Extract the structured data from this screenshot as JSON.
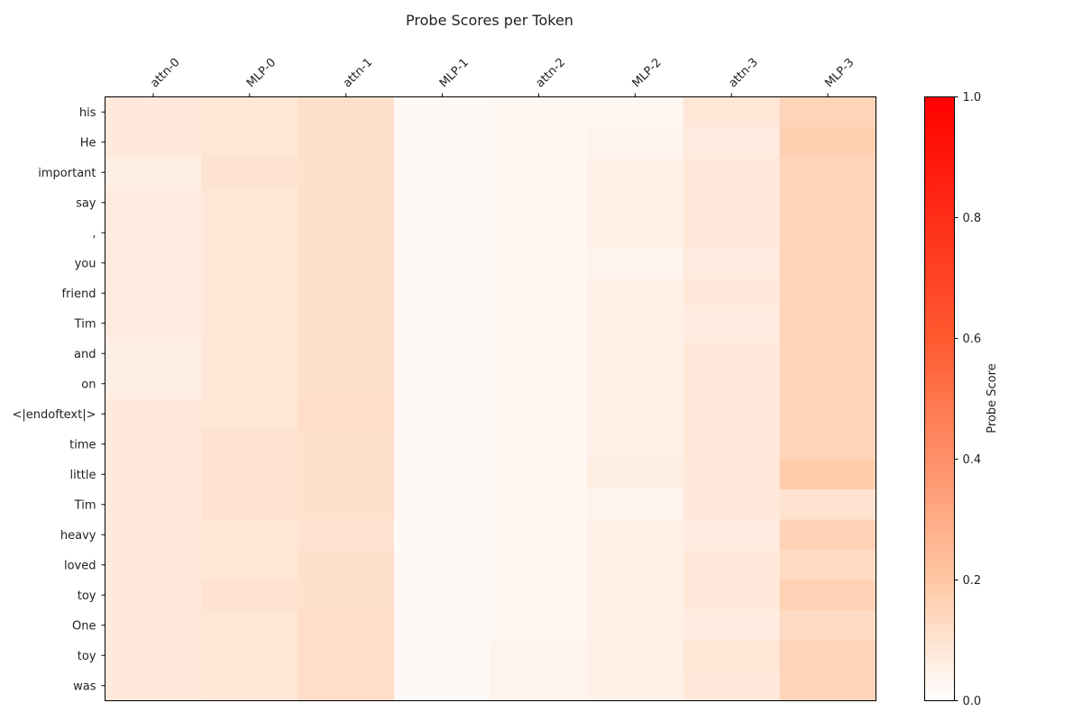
{
  "chart_data": {
    "type": "heatmap",
    "title": "Probe Scores per Token",
    "colorbar": {
      "label": "Probe Score",
      "range": [
        0.0,
        1.0
      ],
      "ticks": [
        "0.0",
        "0.2",
        "0.4",
        "0.6",
        "0.8",
        "1.0"
      ],
      "colors": [
        "#ffffff",
        "#ffc7a3",
        "#ff5a30",
        "#ff0000"
      ]
    },
    "highlight_color": "#d62728",
    "highlighted_row": 5,
    "columns": [
      "attn-0",
      "MLP-0",
      "attn-1",
      "MLP-1",
      "attn-2",
      "MLP-2",
      "attn-3",
      "MLP-3"
    ],
    "rows": [
      "his",
      "He",
      "important",
      "say",
      ",",
      "you",
      "friend",
      "Tim",
      "and",
      "on",
      "<|endoftext|>",
      "time",
      "little",
      "Tim",
      "heavy",
      "loved",
      "toy",
      "One",
      "toy",
      "was"
    ],
    "values": [
      [
        0.08,
        0.09,
        0.11,
        0.02,
        0.03,
        0.03,
        0.09,
        0.15
      ],
      [
        0.08,
        0.09,
        0.11,
        0.02,
        0.03,
        0.04,
        0.07,
        0.17
      ],
      [
        0.06,
        0.1,
        0.11,
        0.02,
        0.03,
        0.05,
        0.08,
        0.15
      ],
      [
        0.07,
        0.09,
        0.11,
        0.02,
        0.03,
        0.05,
        0.08,
        0.15
      ],
      [
        0.07,
        0.09,
        0.11,
        0.02,
        0.03,
        0.05,
        0.08,
        0.15
      ],
      [
        0.07,
        0.09,
        0.11,
        0.02,
        0.03,
        0.04,
        0.07,
        0.15
      ],
      [
        0.07,
        0.09,
        0.11,
        0.02,
        0.03,
        0.05,
        0.08,
        0.15
      ],
      [
        0.07,
        0.09,
        0.11,
        0.02,
        0.03,
        0.05,
        0.07,
        0.15
      ],
      [
        0.06,
        0.09,
        0.11,
        0.02,
        0.03,
        0.05,
        0.08,
        0.15
      ],
      [
        0.06,
        0.09,
        0.11,
        0.02,
        0.03,
        0.05,
        0.08,
        0.15
      ],
      [
        0.08,
        0.09,
        0.12,
        0.02,
        0.03,
        0.05,
        0.08,
        0.15
      ],
      [
        0.08,
        0.1,
        0.11,
        0.02,
        0.03,
        0.05,
        0.08,
        0.15
      ],
      [
        0.08,
        0.1,
        0.11,
        0.02,
        0.03,
        0.06,
        0.08,
        0.18
      ],
      [
        0.08,
        0.1,
        0.11,
        0.02,
        0.03,
        0.04,
        0.08,
        0.1
      ],
      [
        0.08,
        0.09,
        0.1,
        0.02,
        0.03,
        0.05,
        0.07,
        0.16
      ],
      [
        0.08,
        0.09,
        0.11,
        0.02,
        0.03,
        0.05,
        0.08,
        0.13
      ],
      [
        0.08,
        0.1,
        0.11,
        0.02,
        0.03,
        0.05,
        0.08,
        0.16
      ],
      [
        0.08,
        0.09,
        0.12,
        0.02,
        0.03,
        0.05,
        0.07,
        0.13
      ],
      [
        0.08,
        0.09,
        0.12,
        0.02,
        0.04,
        0.05,
        0.09,
        0.15
      ],
      [
        0.08,
        0.09,
        0.12,
        0.02,
        0.04,
        0.05,
        0.08,
        0.15
      ]
    ]
  }
}
